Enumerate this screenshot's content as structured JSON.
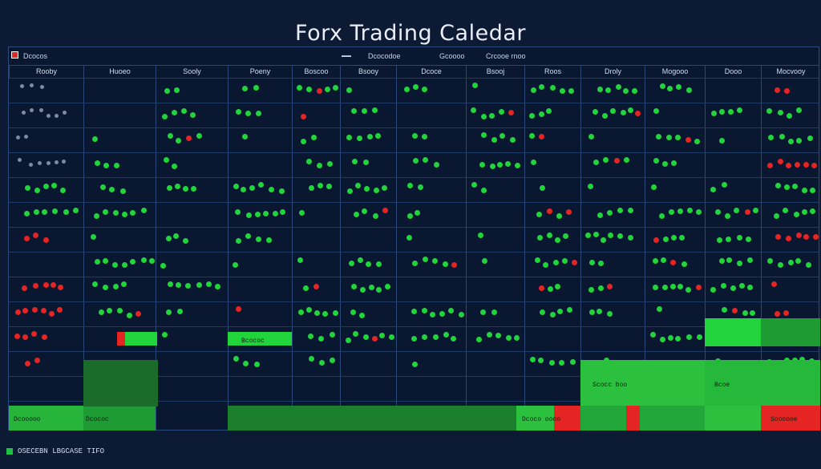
{
  "page": {
    "title": "Forx Trading Caledar"
  },
  "topbar": {
    "app_label": "Dcocos",
    "items": [
      "Dcocodoe",
      "Gcoooo",
      "Crcooe rnoo"
    ]
  },
  "columns": [
    "Rooby",
    "Huoeo",
    "Sooly",
    "Poeny",
    "Boscoo",
    "Bsooy",
    "Dcoce",
    "Bsooj",
    "Roos",
    "Droly",
    "Mogooo",
    "Dooo",
    "Mocvooy"
  ],
  "rows": [
    "",
    "",
    "",
    "",
    "",
    "",
    "",
    "",
    "",
    "",
    "",
    "",
    "",
    ""
  ],
  "bottom_labels": [
    "Dcooooo",
    "Dcococ",
    "Bcococ",
    "Dcoco oooo",
    "Scocc boo",
    "Bcoe",
    "Soooooe"
  ],
  "footer": {
    "text": "OSECEBN    LBGCASE TIFO"
  },
  "colors": {
    "background": "#0d1a33",
    "green": "#22d43c",
    "red": "#e52424",
    "grid": "#2a4778"
  }
}
